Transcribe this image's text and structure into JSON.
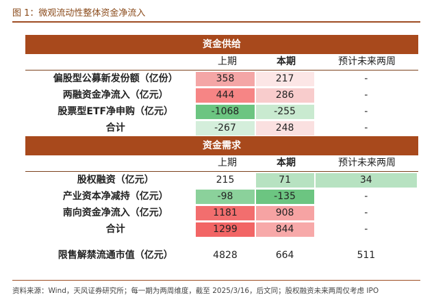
{
  "figure_title": "图 1：微观流动性整体资金净流入",
  "source_note": "资料来源：Wind，天风证券研究所；每一期为两周维度，截至 2025/3/16，后文同；股权融资未来两周仅考虑 IPO",
  "chart_data": {
    "type": "table",
    "columns": [
      "上期",
      "本期",
      "预计未来两周"
    ],
    "sections": [
      {
        "title": "资金供给",
        "rows": [
          {
            "label": "偏股型公募新发份额（亿份）",
            "values": [
              "358",
              "217",
              "-"
            ],
            "colors": [
              "#f4a6a6",
              "#fce6e6",
              "#ffffff"
            ]
          },
          {
            "label": "两融资金净流入（亿元）",
            "values": [
              "444",
              "286",
              "-"
            ],
            "colors": [
              "#f68585",
              "#f8cccc",
              "#ffffff"
            ]
          },
          {
            "label": "股票型ETF净申购（亿元）",
            "values": [
              "-1068",
              "-255",
              "-"
            ],
            "colors": [
              "#6cc581",
              "#c9ead0",
              "#ffffff"
            ]
          },
          {
            "label": "合计",
            "values": [
              "-267",
              "248",
              "-"
            ],
            "colors": [
              "#d4eedb",
              "#fae0e0",
              "#ffffff"
            ]
          }
        ]
      },
      {
        "title": "资金需求",
        "rows": [
          {
            "label": "股权融资（亿元）",
            "values": [
              "215",
              "71",
              "34"
            ],
            "colors": [
              "#ffffff",
              "#b7e2c1",
              "#b7e2c1"
            ]
          },
          {
            "label": "产业资本净减持（亿元）",
            "values": [
              "-98",
              "-135",
              "-"
            ],
            "colors": [
              "#8bd19b",
              "#6cc581",
              "#ffffff"
            ]
          },
          {
            "label": "南向资金净流入（亿元）",
            "values": [
              "1181",
              "908",
              "-"
            ],
            "colors": [
              "#f26e6e",
              "#f6a3a3",
              "#ffffff"
            ]
          },
          {
            "label": "合计",
            "values": [
              "1299",
              "844",
              "-"
            ],
            "colors": [
              "#f26565",
              "#f7a9a9",
              "#ffffff"
            ]
          }
        ]
      }
    ],
    "extra_row": {
      "label": "限售解禁流通市值（亿元）",
      "values": [
        "4828",
        "664",
        "511"
      ]
    }
  }
}
